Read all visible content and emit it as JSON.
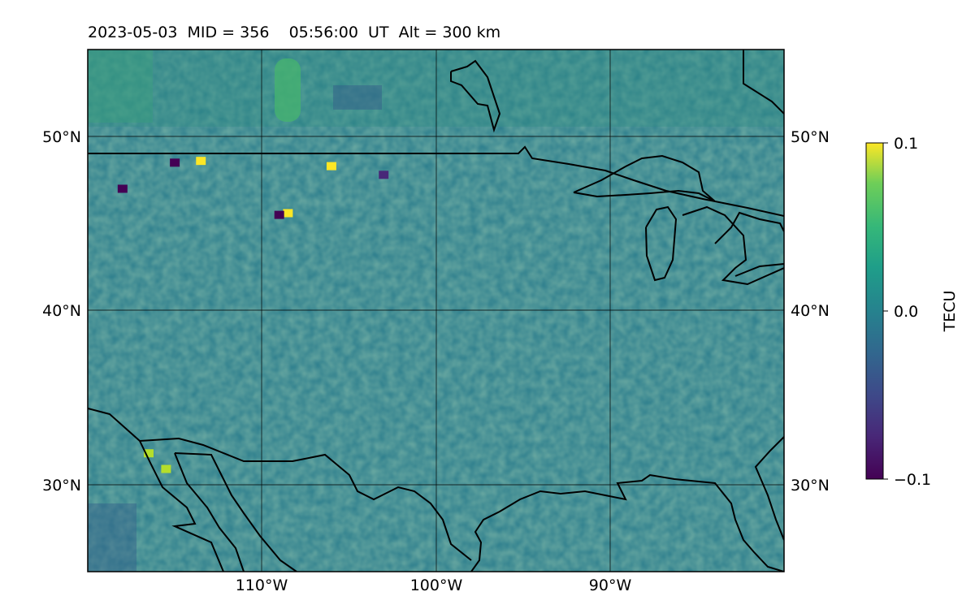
{
  "title": {
    "date": "2023-05-03",
    "mid": "MID = 356",
    "time": "05:56:00  UT",
    "alt": "Alt = 300 km"
  },
  "chart_data": {
    "type": "heatmap",
    "projection": "map",
    "xlim": [
      -120,
      -80
    ],
    "ylim": [
      25,
      55
    ],
    "x_ticks": [
      {
        "value": -110,
        "label": "110°W"
      },
      {
        "value": -100,
        "label": "100°W"
      },
      {
        "value": -90,
        "label": "90°W"
      }
    ],
    "y_ticks": [
      {
        "value": 50,
        "label": "50°N"
      },
      {
        "value": 40,
        "label": "40°N"
      },
      {
        "value": 30,
        "label": "30°N"
      }
    ],
    "grid": true,
    "colormap": "viridis",
    "colorbar": {
      "label": "TECU",
      "range": [
        -0.1,
        0.1
      ],
      "ticks": [
        {
          "value": 0.1,
          "label": "0.1"
        },
        {
          "value": 0.0,
          "label": "0.0"
        },
        {
          "value": -0.1,
          "label": "−0.1"
        }
      ]
    },
    "hotspots": [
      {
        "lon": -113.5,
        "lat": 48.6,
        "value": 0.1
      },
      {
        "lon": -106.0,
        "lat": 48.3,
        "value": 0.1
      },
      {
        "lon": -108.5,
        "lat": 45.6,
        "value": 0.09
      },
      {
        "lon": -115.0,
        "lat": 48.5,
        "value": -0.1
      },
      {
        "lon": -109.0,
        "lat": 45.5,
        "value": -0.1
      },
      {
        "lon": -118.0,
        "lat": 47.0,
        "value": -0.09
      },
      {
        "lon": -103.0,
        "lat": 47.8,
        "value": -0.08
      },
      {
        "lon": -116.5,
        "lat": 31.8,
        "value": 0.08
      },
      {
        "lon": -115.5,
        "lat": 30.9,
        "value": 0.08
      }
    ]
  }
}
